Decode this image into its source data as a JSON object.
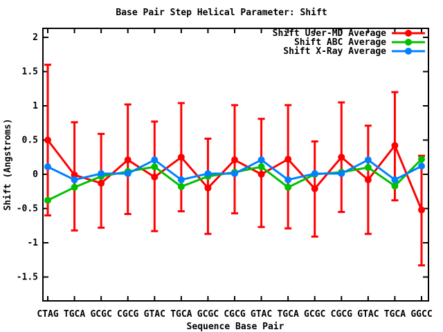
{
  "colors": {
    "background": "#ffffff",
    "axis": "#000000",
    "series_user_md": "#ff0000",
    "series_abc": "#00c000",
    "series_xray": "#0080ff"
  },
  "chart_data": {
    "type": "line",
    "title": "Base Pair Step Helical Parameter: Shift",
    "xlabel": "Sequence Base Pair",
    "ylabel": "Shift (Angstroms)",
    "grid": false,
    "legend_position": "top-right-inside",
    "ylim": [
      -1.87,
      2.13
    ],
    "yticks": [
      2,
      1.5,
      1,
      0.5,
      0,
      -0.5,
      -1,
      -1.5
    ],
    "categories": [
      "CTAG",
      "TGCA",
      "GCGC",
      "CGCG",
      "GTAC",
      "TGCA",
      "GCGC",
      "CGCG",
      "GTAC",
      "TGCA",
      "GCGC",
      "CGCG",
      "GTAC",
      "TGCA",
      "GGCC"
    ],
    "series": [
      {
        "name": "Shift User-MD Average",
        "color": "#ff0000",
        "marker": "circle",
        "values": [
          0.5,
          -0.01,
          -0.13,
          0.21,
          -0.04,
          0.25,
          -0.2,
          0.21,
          0.0,
          0.22,
          -0.21,
          0.25,
          -0.08,
          0.42,
          -0.52
        ],
        "error_high": [
          1.6,
          0.76,
          0.59,
          1.02,
          0.77,
          1.04,
          0.52,
          1.01,
          0.81,
          1.01,
          0.48,
          1.05,
          0.71,
          1.2,
          0.27
        ],
        "error_low": [
          -0.6,
          -0.82,
          -0.78,
          -0.58,
          -0.83,
          -0.54,
          -0.87,
          -0.57,
          -0.77,
          -0.79,
          -0.91,
          -0.55,
          -0.87,
          -0.38,
          -1.33
        ]
      },
      {
        "name": "Shift ABC Average",
        "color": "#00c000",
        "marker": "circle",
        "values": [
          -0.38,
          -0.19,
          -0.03,
          0.04,
          0.11,
          -0.18,
          -0.03,
          0.03,
          0.11,
          -0.19,
          0.0,
          0.03,
          0.1,
          -0.17,
          0.22
        ]
      },
      {
        "name": "Shift X-Ray Average",
        "color": "#0080ff",
        "marker": "circle",
        "values": [
          0.11,
          -0.08,
          0.01,
          0.01,
          0.21,
          -0.08,
          0.01,
          0.01,
          0.21,
          -0.08,
          0.01,
          0.01,
          0.21,
          -0.08,
          0.12
        ]
      }
    ]
  }
}
